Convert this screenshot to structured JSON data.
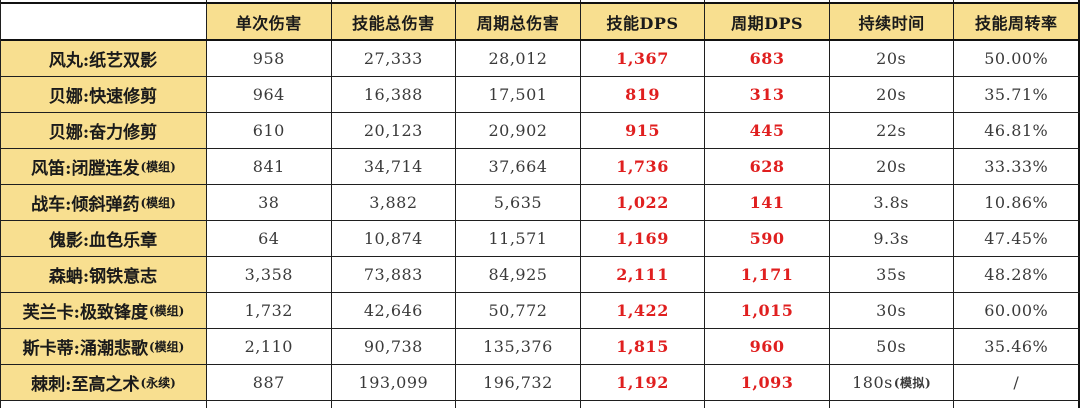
{
  "chart_data": {
    "type": "table",
    "corner_label": "",
    "columns": [
      "单次伤害",
      "技能总伤害",
      "周期总伤害",
      "技能DPS",
      "周期DPS",
      "持续时间",
      "技能周转率"
    ],
    "rows": [
      {
        "name": "风丸:纸艺双影",
        "suffix": "",
        "single": "958",
        "skill_total": "27,333",
        "cycle_total": "28,012",
        "skill_dps": "1,367",
        "cycle_dps": "683",
        "duration": "20s",
        "duration_suffix": "",
        "uptime": "50.00%"
      },
      {
        "name": "贝娜:快速修剪",
        "suffix": "",
        "single": "964",
        "skill_total": "16,388",
        "cycle_total": "17,501",
        "skill_dps": "819",
        "cycle_dps": "313",
        "duration": "20s",
        "duration_suffix": "",
        "uptime": "35.71%"
      },
      {
        "name": "贝娜:奋力修剪",
        "suffix": "",
        "single": "610",
        "skill_total": "20,123",
        "cycle_total": "20,902",
        "skill_dps": "915",
        "cycle_dps": "445",
        "duration": "22s",
        "duration_suffix": "",
        "uptime": "46.81%"
      },
      {
        "name": "风笛:闭膛连发",
        "suffix": "(模组)",
        "single": "841",
        "skill_total": "34,714",
        "cycle_total": "37,664",
        "skill_dps": "1,736",
        "cycle_dps": "628",
        "duration": "20s",
        "duration_suffix": "",
        "uptime": "33.33%"
      },
      {
        "name": "战车:倾斜弹药",
        "suffix": "(模组)",
        "single": "38",
        "skill_total": "3,882",
        "cycle_total": "5,635",
        "skill_dps": "1,022",
        "cycle_dps": "141",
        "duration": "3.8s",
        "duration_suffix": "",
        "uptime": "10.86%"
      },
      {
        "name": "傀影:血色乐章",
        "suffix": "",
        "single": "64",
        "skill_total": "10,874",
        "cycle_total": "11,571",
        "skill_dps": "1,169",
        "cycle_dps": "590",
        "duration": "9.3s",
        "duration_suffix": "",
        "uptime": "47.45%"
      },
      {
        "name": "森蚺:钢铁意志",
        "suffix": "",
        "single": "3,358",
        "skill_total": "73,883",
        "cycle_total": "84,925",
        "skill_dps": "2,111",
        "cycle_dps": "1,171",
        "duration": "35s",
        "duration_suffix": "",
        "uptime": "48.28%"
      },
      {
        "name": "芙兰卡:极致锋度",
        "suffix": "(模组)",
        "single": "1,732",
        "skill_total": "42,646",
        "cycle_total": "50,772",
        "skill_dps": "1,422",
        "cycle_dps": "1,015",
        "duration": "30s",
        "duration_suffix": "",
        "uptime": "60.00%"
      },
      {
        "name": "斯卡蒂:涌潮悲歌",
        "suffix": "(模组)",
        "single": "2,110",
        "skill_total": "90,738",
        "cycle_total": "135,376",
        "skill_dps": "1,815",
        "cycle_dps": "960",
        "duration": "50s",
        "duration_suffix": "",
        "uptime": "35.46%"
      },
      {
        "name": "棘刺:至高之术",
        "suffix": "(永续)",
        "single": "887",
        "skill_total": "193,099",
        "cycle_total": "196,732",
        "skill_dps": "1,192",
        "cycle_dps": "1,093",
        "duration": "180s",
        "duration_suffix": "(模拟)",
        "uptime": "/"
      }
    ],
    "colors": {
      "header_bg": "#F8DF90",
      "dps_red": "#E01F1F",
      "text": "#3A3A3A",
      "border": "#1F1F1F"
    },
    "layout": {
      "red_columns": [
        "技能DPS",
        "周期DPS"
      ],
      "first_column": "operator:skill row labels",
      "grid": "all cells bordered, header and label column shaded",
      "cropped_edges": "thin slivers of adjacent spreadsheet rows visible at top and bottom"
    }
  }
}
